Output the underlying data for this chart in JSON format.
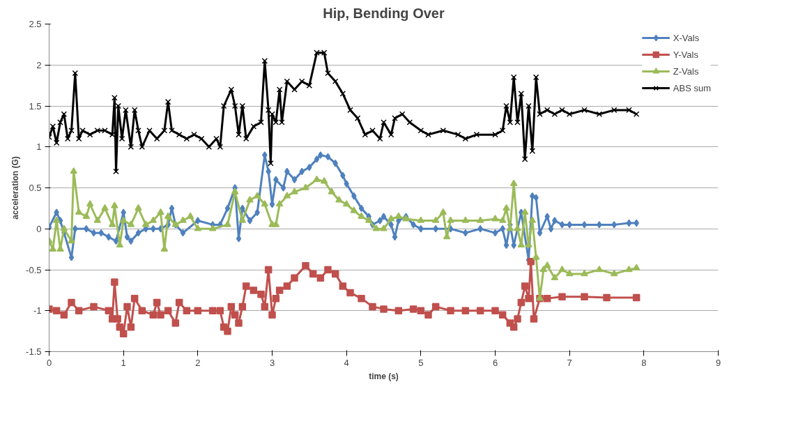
{
  "chart_data": {
    "type": "line",
    "title": "Hip, Bending Over",
    "xlabel": "time (s)",
    "ylabel": "acceleration (G)",
    "xlim": [
      0,
      9
    ],
    "xticks": [
      0,
      1,
      2,
      3,
      4,
      5,
      6,
      7,
      8,
      9
    ],
    "ylim": [
      -1.5,
      2.5
    ],
    "yticks": [
      -1.5,
      -1,
      -0.5,
      0,
      0.5,
      1,
      1.5,
      2,
      2.5
    ],
    "grid": "y",
    "legend": "top right",
    "series": [
      {
        "name": "X-Vals",
        "color": "#4f81bd",
        "marker": "diamond",
        "x": [
          0,
          0.1,
          0.15,
          0.2,
          0.3,
          0.35,
          0.5,
          0.6,
          0.7,
          0.8,
          0.9,
          1.0,
          1.05,
          1.1,
          1.2,
          1.3,
          1.4,
          1.5,
          1.6,
          1.65,
          1.7,
          1.8,
          2.0,
          2.2,
          2.3,
          2.4,
          2.5,
          2.55,
          2.6,
          2.7,
          2.8,
          2.9,
          2.95,
          3.0,
          3.05,
          3.15,
          3.2,
          3.3,
          3.4,
          3.5,
          3.6,
          3.65,
          3.75,
          3.85,
          3.95,
          4.0,
          4.1,
          4.2,
          4.3,
          4.35,
          4.45,
          4.5,
          4.6,
          4.65,
          4.7,
          4.8,
          4.9,
          5.0,
          5.2,
          5.4,
          5.6,
          5.8,
          6.0,
          6.1,
          6.15,
          6.2,
          6.25,
          6.35,
          6.45,
          6.5,
          6.55,
          6.6,
          6.7,
          6.75,
          6.8,
          6.9,
          7.0,
          7.2,
          7.4,
          7.6,
          7.8,
          7.9
        ],
        "values": [
          0.02,
          0.2,
          0.1,
          -0.05,
          -0.35,
          0.0,
          0.0,
          -0.05,
          -0.05,
          -0.1,
          -0.15,
          0.2,
          -0.1,
          -0.15,
          -0.05,
          0.0,
          0.0,
          0.0,
          0.05,
          0.25,
          0.05,
          -0.05,
          0.1,
          0.05,
          0.05,
          0.25,
          0.5,
          -0.12,
          0.25,
          0.1,
          0.2,
          0.9,
          0.7,
          0.3,
          0.6,
          0.5,
          0.7,
          0.6,
          0.7,
          0.75,
          0.85,
          0.9,
          0.88,
          0.8,
          0.65,
          0.55,
          0.4,
          0.25,
          0.15,
          0.05,
          0.1,
          0.15,
          0.05,
          -0.1,
          0.1,
          0.15,
          0.05,
          0.0,
          0.0,
          0.0,
          -0.05,
          0.0,
          -0.05,
          0.0,
          -0.2,
          0.05,
          -0.2,
          0.2,
          -0.38,
          0.4,
          0.38,
          -0.05,
          0.15,
          0.0,
          0.1,
          0.05,
          0.05,
          0.05,
          0.05,
          0.05,
          0.07,
          0.07
        ]
      },
      {
        "name": "Y-Vals",
        "color": "#c0504d",
        "marker": "square",
        "x": [
          0,
          0.1,
          0.2,
          0.3,
          0.4,
          0.6,
          0.8,
          0.85,
          0.88,
          0.92,
          0.95,
          1.0,
          1.05,
          1.1,
          1.15,
          1.25,
          1.4,
          1.45,
          1.5,
          1.6,
          1.7,
          1.75,
          1.85,
          2.0,
          2.2,
          2.3,
          2.35,
          2.4,
          2.45,
          2.5,
          2.55,
          2.6,
          2.65,
          2.75,
          2.85,
          2.9,
          2.95,
          3.0,
          3.05,
          3.1,
          3.2,
          3.3,
          3.45,
          3.55,
          3.65,
          3.75,
          3.85,
          3.95,
          4.05,
          4.2,
          4.35,
          4.5,
          4.7,
          4.9,
          5.0,
          5.1,
          5.2,
          5.4,
          5.6,
          5.8,
          6.0,
          6.1,
          6.2,
          6.25,
          6.3,
          6.35,
          6.4,
          6.45,
          6.48,
          6.52,
          6.6,
          6.7,
          6.9,
          7.2,
          7.5,
          7.9
        ],
        "values": [
          -0.98,
          -1.0,
          -1.05,
          -0.9,
          -1.0,
          -0.95,
          -1.0,
          -1.1,
          -0.65,
          -1.1,
          -1.2,
          -1.28,
          -0.95,
          -1.2,
          -0.85,
          -1.0,
          -1.05,
          -0.9,
          -1.05,
          -1.0,
          -1.15,
          -0.9,
          -1.0,
          -1.0,
          -1.0,
          -1.0,
          -1.2,
          -1.25,
          -0.95,
          -1.05,
          -1.15,
          -0.95,
          -0.7,
          -0.75,
          -0.8,
          -0.95,
          -0.5,
          -1.05,
          -0.85,
          -0.75,
          -0.7,
          -0.6,
          -0.45,
          -0.55,
          -0.6,
          -0.5,
          -0.55,
          -0.7,
          -0.78,
          -0.85,
          -0.95,
          -0.98,
          -1.0,
          -0.98,
          -1.0,
          -1.05,
          -0.95,
          -1.0,
          -1.0,
          -1.0,
          -1.0,
          -1.05,
          -1.15,
          -1.2,
          -1.1,
          -0.9,
          -0.7,
          -0.85,
          -0.4,
          -1.1,
          -0.85,
          -0.85,
          -0.83,
          -0.83,
          -0.84,
          -0.84
        ]
      },
      {
        "name": "Z-Vals",
        "color": "#9bbb59",
        "marker": "triangle",
        "x": [
          0,
          0.05,
          0.1,
          0.15,
          0.2,
          0.3,
          0.33,
          0.4,
          0.5,
          0.55,
          0.65,
          0.75,
          0.85,
          0.88,
          0.95,
          1.0,
          1.1,
          1.2,
          1.3,
          1.4,
          1.5,
          1.55,
          1.6,
          1.7,
          1.8,
          1.9,
          2.0,
          2.2,
          2.4,
          2.5,
          2.6,
          2.7,
          2.8,
          2.9,
          3.0,
          3.05,
          3.1,
          3.2,
          3.3,
          3.45,
          3.6,
          3.7,
          3.8,
          3.9,
          4.0,
          4.1,
          4.2,
          4.3,
          4.4,
          4.5,
          4.6,
          4.7,
          4.8,
          5.0,
          5.2,
          5.3,
          5.35,
          5.4,
          5.6,
          5.8,
          6.0,
          6.1,
          6.15,
          6.2,
          6.25,
          6.3,
          6.35,
          6.4,
          6.45,
          6.5,
          6.55,
          6.6,
          6.65,
          6.7,
          6.8,
          6.9,
          7.0,
          7.2,
          7.4,
          7.6,
          7.8,
          7.9
        ],
        "values": [
          -0.15,
          -0.25,
          0.1,
          -0.25,
          0.0,
          -0.15,
          0.7,
          0.2,
          0.15,
          0.3,
          0.1,
          0.25,
          0.05,
          0.28,
          -0.2,
          0.1,
          0.05,
          0.25,
          0.05,
          0.1,
          0.2,
          -0.25,
          0.15,
          0.05,
          0.1,
          0.15,
          0.0,
          0.0,
          0.05,
          0.45,
          0.1,
          0.35,
          0.4,
          0.3,
          0.05,
          0.05,
          0.3,
          0.4,
          0.45,
          0.5,
          0.6,
          0.58,
          0.45,
          0.35,
          0.3,
          0.22,
          0.15,
          0.1,
          0.0,
          0.0,
          0.12,
          0.15,
          0.12,
          0.1,
          0.1,
          0.2,
          -0.1,
          0.1,
          0.1,
          0.1,
          0.12,
          0.1,
          0.25,
          0.0,
          0.55,
          0.0,
          -0.2,
          0.2,
          -0.2,
          0.1,
          -0.35,
          -0.85,
          -0.5,
          -0.45,
          -0.6,
          -0.5,
          -0.55,
          -0.55,
          -0.5,
          -0.55,
          -0.5,
          -0.48
        ]
      },
      {
        "name": "ABS sum",
        "color": "#000000",
        "marker": "cross",
        "x": [
          0,
          0.05,
          0.1,
          0.15,
          0.2,
          0.25,
          0.3,
          0.35,
          0.4,
          0.45,
          0.55,
          0.65,
          0.75,
          0.85,
          0.88,
          0.9,
          0.93,
          0.98,
          1.03,
          1.1,
          1.15,
          1.2,
          1.25,
          1.35,
          1.45,
          1.55,
          1.6,
          1.65,
          1.75,
          1.85,
          1.95,
          2.05,
          2.15,
          2.25,
          2.3,
          2.35,
          2.45,
          2.5,
          2.55,
          2.6,
          2.65,
          2.75,
          2.85,
          2.9,
          2.95,
          2.98,
          3.0,
          3.05,
          3.1,
          3.13,
          3.2,
          3.3,
          3.4,
          3.5,
          3.6,
          3.7,
          3.75,
          3.85,
          3.95,
          4.05,
          4.15,
          4.25,
          4.35,
          4.45,
          4.5,
          4.6,
          4.65,
          4.75,
          4.85,
          5.0,
          5.1,
          5.3,
          5.5,
          5.6,
          5.75,
          6.0,
          6.1,
          6.15,
          6.2,
          6.25,
          6.3,
          6.35,
          6.4,
          6.45,
          6.5,
          6.55,
          6.6,
          6.7,
          6.8,
          6.9,
          7.0,
          7.2,
          7.4,
          7.6,
          7.8,
          7.9
        ],
        "values": [
          1.12,
          1.25,
          1.05,
          1.3,
          1.4,
          1.1,
          1.2,
          1.9,
          1.1,
          1.2,
          1.15,
          1.2,
          1.2,
          1.15,
          1.6,
          0.7,
          1.5,
          1.1,
          1.45,
          1.0,
          1.45,
          1.2,
          1.0,
          1.2,
          1.1,
          1.2,
          1.55,
          1.2,
          1.15,
          1.1,
          1.15,
          1.1,
          1.0,
          1.1,
          1.0,
          1.5,
          1.7,
          1.5,
          1.15,
          1.5,
          1.1,
          1.25,
          1.3,
          2.05,
          1.45,
          0.8,
          1.4,
          1.3,
          1.7,
          1.3,
          1.8,
          1.7,
          1.8,
          1.75,
          2.15,
          2.15,
          1.9,
          1.8,
          1.65,
          1.45,
          1.35,
          1.15,
          1.2,
          1.1,
          1.3,
          1.15,
          1.35,
          1.4,
          1.3,
          1.2,
          1.15,
          1.2,
          1.15,
          1.1,
          1.15,
          1.15,
          1.2,
          1.5,
          1.3,
          1.85,
          1.3,
          1.65,
          0.85,
          1.5,
          0.95,
          1.85,
          1.4,
          1.45,
          1.4,
          1.45,
          1.4,
          1.45,
          1.4,
          1.45,
          1.45,
          1.4
        ]
      }
    ]
  }
}
